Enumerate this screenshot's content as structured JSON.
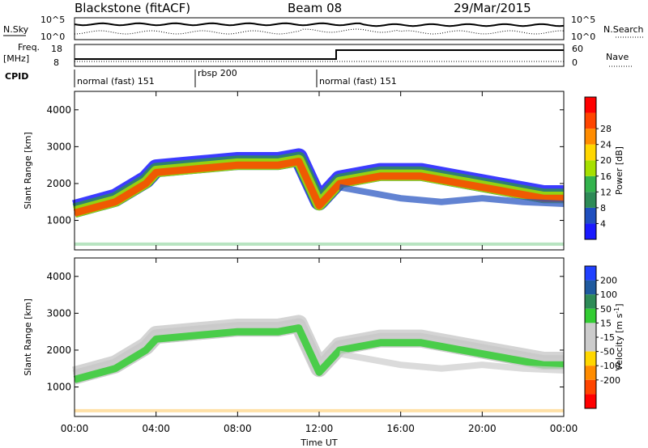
{
  "header": {
    "station": "Blackstone (fitACF)",
    "beam": "Beam 08",
    "date": "29/Mar/2015"
  },
  "panels": {
    "nsky_label": "N.Sky",
    "nsearch_label": "N.Search",
    "nsky_ticks": [
      "10^5",
      "10^0"
    ],
    "nsearch_ticks": [
      "10^5",
      "10^0"
    ],
    "freq_label": "Freq.",
    "freq_unit": "[MHz]",
    "freq_ticks": [
      "18",
      "8"
    ],
    "nave_label": "Nave",
    "nave_ticks": [
      "60",
      "0"
    ],
    "cpid_label": "CPID",
    "cpid_segments": [
      {
        "label": "normal (fast) 151",
        "start_hour": 0.0
      },
      {
        "label": "rbsp 200",
        "start_hour": 6.0
      },
      {
        "label": "normal (fast) 151",
        "start_hour": 12.0
      }
    ]
  },
  "colors": {
    "power": [
      "#1a1aff",
      "#1f4fbf",
      "#2e8b57",
      "#33b34d",
      "#a6e000",
      "#ffd700",
      "#ff8c00",
      "#ff4500",
      "#ff0000"
    ],
    "velocity": [
      "#2040ff",
      "#1f5a9f",
      "#2e8b57",
      "#33cc33",
      "#cccccc",
      "#cccccc",
      "#ffd700",
      "#ff8c00",
      "#ff4500",
      "#ff0000"
    ]
  },
  "chart_data": [
    {
      "type": "heatmap",
      "quantity": "power",
      "ylabel": "Slant Range [km]",
      "ylim": [
        200,
        4500
      ],
      "yticks": [
        1000,
        2000,
        3000,
        4000
      ],
      "xlim": [
        0,
        24
      ],
      "colorbar_label": "Power [dB]",
      "colorbar_ticks": [
        4,
        8,
        12,
        16,
        20,
        24,
        28
      ],
      "bands": [
        {
          "name": "main echo band",
          "x": [
            0,
            2,
            3.5,
            4,
            6,
            8,
            10,
            11,
            11.5,
            12,
            13,
            15,
            17,
            19,
            21,
            23,
            24
          ],
          "y": [
            1200,
            1500,
            2000,
            2300,
            2400,
            2500,
            2500,
            2600,
            2000,
            1400,
            2000,
            2200,
            2200,
            2000,
            1800,
            1600,
            1600
          ]
        }
      ]
    },
    {
      "type": "heatmap",
      "quantity": "velocity",
      "ylabel": "Slant Range [km]",
      "ylim": [
        200,
        4500
      ],
      "yticks": [
        1000,
        2000,
        3000,
        4000
      ],
      "xlim": [
        0,
        24
      ],
      "colorbar_label": "Velocity [m s^-1]",
      "colorbar_ticks": [
        200,
        100,
        50,
        15,
        -15,
        -50,
        -100,
        -200
      ]
    }
  ],
  "xaxis": {
    "label": "Time UT",
    "ticks": [
      "00:00",
      "04:00",
      "08:00",
      "12:00",
      "16:00",
      "20:00",
      "00:00"
    ]
  }
}
